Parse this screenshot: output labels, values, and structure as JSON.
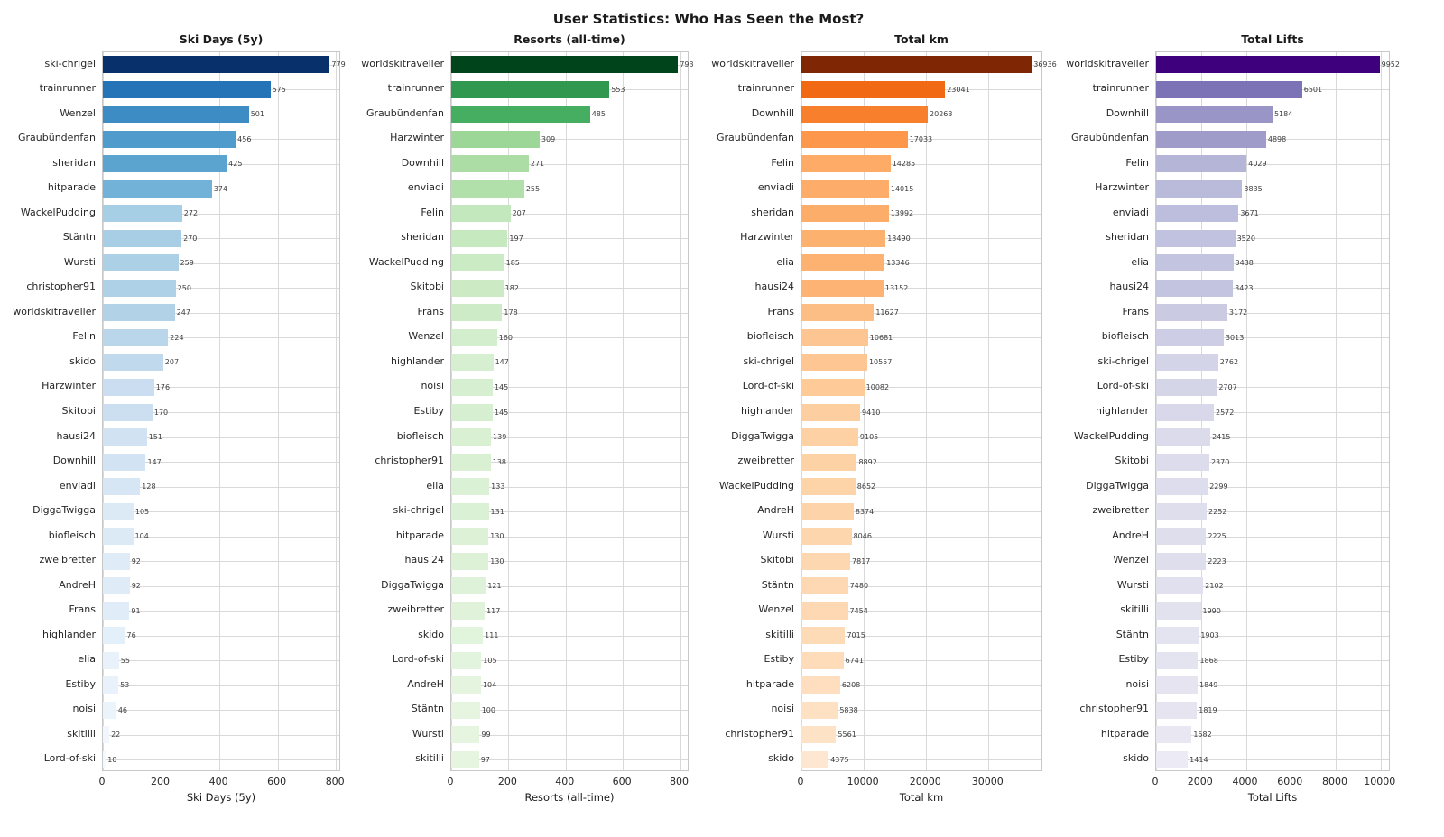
{
  "figure_title": "User Statistics: Who Has Seen the Most?",
  "chart_data": [
    {
      "type": "bar",
      "orientation": "horizontal",
      "title": "Ski Days (5y)",
      "xlabel": "Ski Days (5y)",
      "xticks": [
        0,
        200,
        400,
        600,
        800
      ],
      "xlim": [
        0,
        818
      ],
      "grid": true,
      "colormap_name": "Blues",
      "colormap": [
        "#f7fbff",
        "#deebf7",
        "#c6dbef",
        "#9ecae1",
        "#6baed6",
        "#4292c6",
        "#2171b5",
        "#08519c",
        "#08306b"
      ],
      "categories": [
        "ski-chrigel",
        "trainrunner",
        "Wenzel",
        "Graubündenfan",
        "sheridan",
        "hitparade",
        "WackelPudding",
        "Stäntn",
        "Wursti",
        "christopher91",
        "worldskitraveller",
        "Felin",
        "skido",
        "Harzwinter",
        "Skitobi",
        "hausi24",
        "Downhill",
        "enviadi",
        "DiggaTwigga",
        "biofleisch",
        "zweibretter",
        "AndreH",
        "Frans",
        "highlander",
        "elia",
        "Estiby",
        "noisi",
        "skitilli",
        "Lord-of-ski"
      ],
      "values": [
        779,
        575,
        501,
        456,
        425,
        374,
        272,
        270,
        259,
        250,
        247,
        224,
        207,
        176,
        170,
        151,
        147,
        128,
        105,
        104,
        92,
        92,
        91,
        76,
        55,
        53,
        46,
        22,
        10
      ]
    },
    {
      "type": "bar",
      "orientation": "horizontal",
      "title": "Resorts (all-time)",
      "xlabel": "Resorts (all-time)",
      "xticks": [
        0,
        200,
        400,
        600,
        800
      ],
      "xlim": [
        0,
        833
      ],
      "grid": true,
      "colormap_name": "Greens",
      "colormap": [
        "#f7fcf5",
        "#e5f5e0",
        "#c7e9c0",
        "#a1d99b",
        "#74c476",
        "#41ab5d",
        "#238b45",
        "#006d2c",
        "#00441b"
      ],
      "categories": [
        "worldskitraveller",
        "trainrunner",
        "Graubündenfan",
        "Harzwinter",
        "Downhill",
        "enviadi",
        "Felin",
        "sheridan",
        "WackelPudding",
        "Skitobi",
        "Frans",
        "Wenzel",
        "highlander",
        "noisi",
        "Estiby",
        "biofleisch",
        "christopher91",
        "elia",
        "ski-chrigel",
        "hitparade",
        "hausi24",
        "DiggaTwigga",
        "zweibretter",
        "skido",
        "Lord-of-ski",
        "AndreH",
        "Stäntn",
        "Wursti",
        "skitilli"
      ],
      "values": [
        793,
        553,
        485,
        309,
        271,
        255,
        207,
        197,
        185,
        182,
        178,
        160,
        147,
        145,
        145,
        139,
        138,
        133,
        131,
        130,
        130,
        121,
        117,
        111,
        105,
        104,
        100,
        99,
        97
      ]
    },
    {
      "type": "bar",
      "orientation": "horizontal",
      "title": "Total km",
      "xlabel": "Total km",
      "xticks": [
        0,
        10000,
        20000,
        30000
      ],
      "xlim": [
        0,
        38783
      ],
      "grid": true,
      "colormap_name": "Oranges",
      "colormap": [
        "#fff5eb",
        "#fee6ce",
        "#fdd0a2",
        "#fdae6b",
        "#fd8d3c",
        "#f16913",
        "#d94801",
        "#a63603",
        "#7f2704"
      ],
      "categories": [
        "worldskitraveller",
        "trainrunner",
        "Downhill",
        "Graubündenfan",
        "Felin",
        "enviadi",
        "sheridan",
        "Harzwinter",
        "elia",
        "hausi24",
        "Frans",
        "biofleisch",
        "ski-chrigel",
        "Lord-of-ski",
        "highlander",
        "DiggaTwigga",
        "zweibretter",
        "WackelPudding",
        "AndreH",
        "Wursti",
        "Skitobi",
        "Stäntn",
        "Wenzel",
        "skitilli",
        "Estiby",
        "hitparade",
        "noisi",
        "christopher91",
        "skido"
      ],
      "values": [
        36936,
        23041,
        20263,
        17033,
        14285,
        14015,
        13992,
        13490,
        13346,
        13152,
        11627,
        10681,
        10557,
        10082,
        9410,
        9105,
        8892,
        8652,
        8374,
        8046,
        7817,
        7480,
        7454,
        7015,
        6741,
        6208,
        5838,
        5561,
        4375
      ]
    },
    {
      "type": "bar",
      "orientation": "horizontal",
      "title": "Total Lifts",
      "xlabel": "Total Lifts",
      "xticks": [
        0,
        2000,
        4000,
        6000,
        8000,
        10000
      ],
      "xlim": [
        0,
        10450
      ],
      "grid": true,
      "colormap_name": "Purples",
      "colormap": [
        "#fcfbfd",
        "#efedf5",
        "#dadaeb",
        "#bcbddc",
        "#9e9ac8",
        "#807dba",
        "#6a51a3",
        "#54278f",
        "#3f007d"
      ],
      "categories": [
        "worldskitraveller",
        "trainrunner",
        "Downhill",
        "Graubündenfan",
        "Felin",
        "Harzwinter",
        "enviadi",
        "sheridan",
        "elia",
        "hausi24",
        "Frans",
        "biofleisch",
        "ski-chrigel",
        "Lord-of-ski",
        "highlander",
        "WackelPudding",
        "Skitobi",
        "DiggaTwigga",
        "zweibretter",
        "AndreH",
        "Wenzel",
        "Wursti",
        "skitilli",
        "Stäntn",
        "Estiby",
        "noisi",
        "christopher91",
        "hitparade",
        "skido"
      ],
      "values": [
        9952,
        6501,
        5184,
        4898,
        4029,
        3835,
        3671,
        3520,
        3438,
        3423,
        3172,
        3013,
        2762,
        2707,
        2572,
        2415,
        2370,
        2299,
        2252,
        2225,
        2223,
        2102,
        1990,
        1903,
        1868,
        1849,
        1819,
        1582,
        1414
      ]
    }
  ]
}
